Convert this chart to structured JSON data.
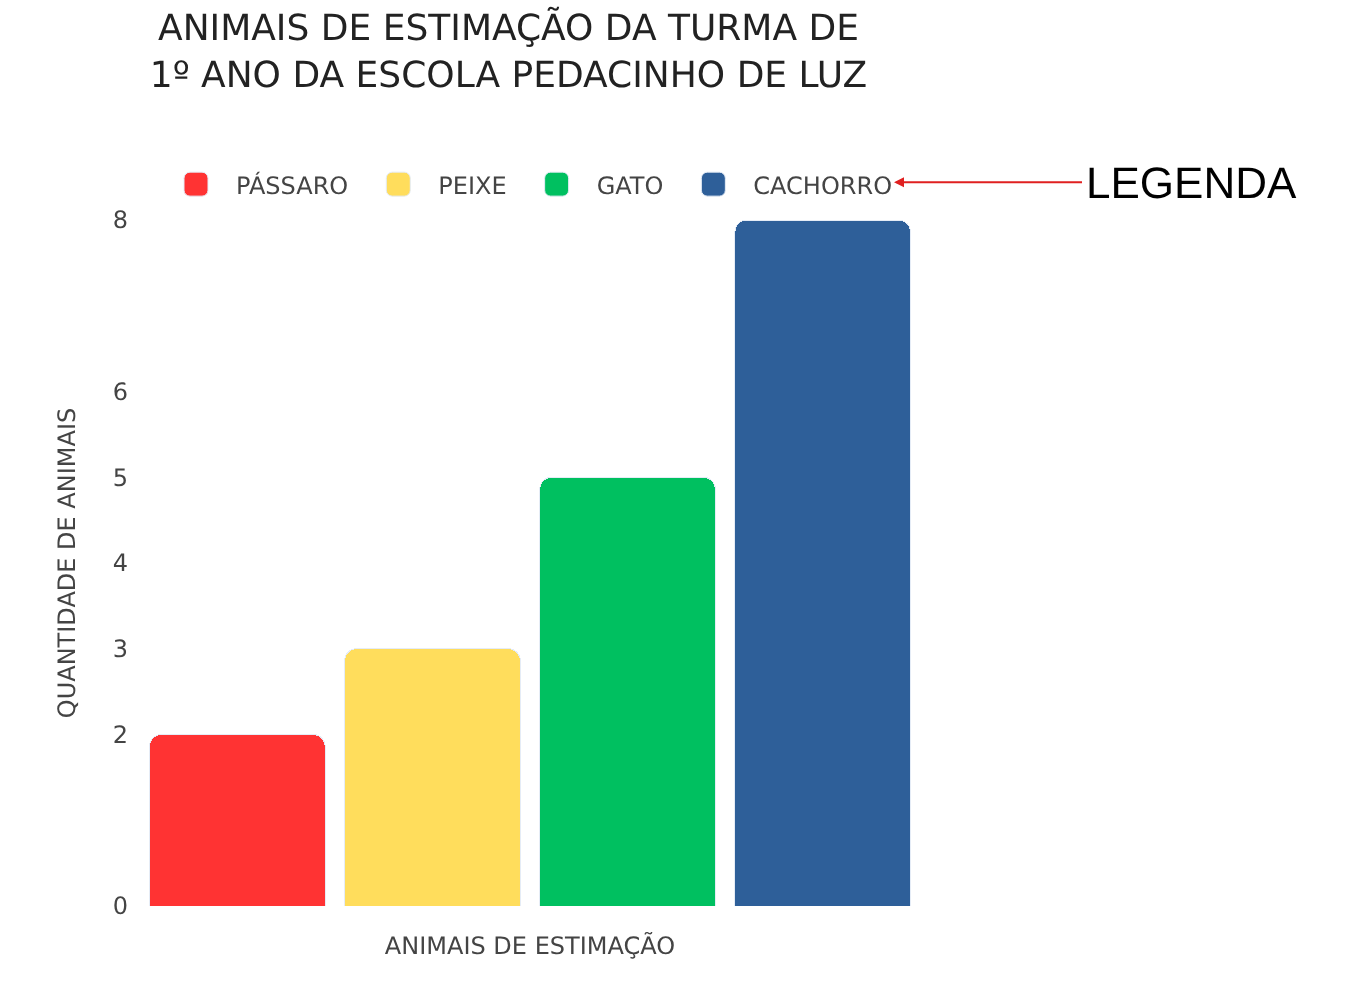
{
  "chart_data": {
    "type": "bar",
    "title": "ANIMAIS DE ESTIMAÇÃO DA TURMA DE 1º ANO DA ESCOLA PEDACINHO DE LUZ",
    "xlabel": "ANIMAIS DE ESTIMAÇÃO",
    "ylabel": "QUANTIDADE DE ANIMAIS",
    "annotations": [
      "LEGENDA"
    ],
    "categories": [
      null,
      null,
      null,
      null
    ],
    "series": [
      {
        "name": "PÁSSARO",
        "color": "#ff3333",
        "values": [
          2,
          null,
          null,
          null
        ]
      },
      {
        "name": "PEIXE",
        "color": "#ffdd5c",
        "values": [
          null,
          3,
          null,
          null
        ]
      },
      {
        "name": "GATO",
        "color": "#00c060",
        "values": [
          null,
          null,
          5,
          null
        ]
      },
      {
        "name": "CACHORRO",
        "color": "#2e5f99",
        "values": [
          null,
          null,
          null,
          8
        ]
      }
    ],
    "stacked": true,
    "ylim": [
      0,
      8
    ],
    "yticks": [
      0,
      2,
      3,
      4,
      5,
      6,
      8
    ],
    "legend": "top"
  }
}
